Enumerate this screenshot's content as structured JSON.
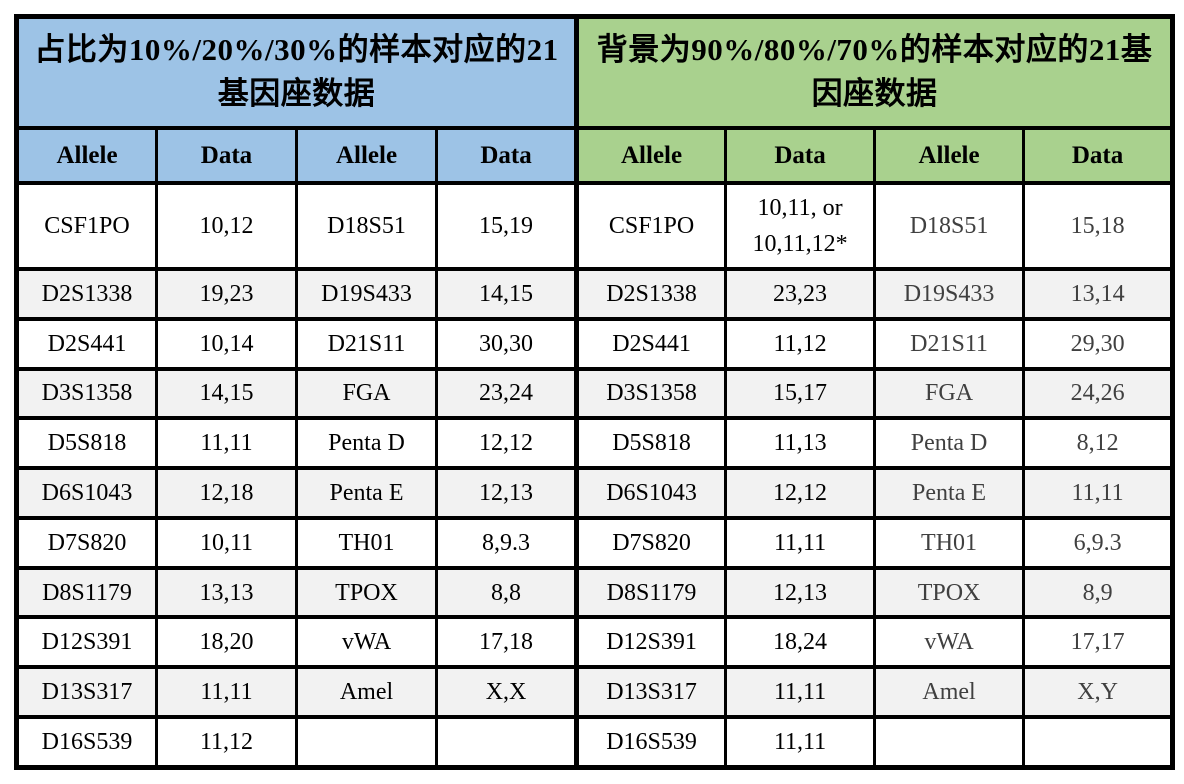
{
  "table": {
    "left": {
      "title": "占比为10%/20%/30%的样本对应的21基因座数据",
      "columns": [
        "Allele",
        "Data",
        "Allele",
        "Data"
      ]
    },
    "right": {
      "title": "背景为90%/80%/70%的样本对应的21基因座数据",
      "columns": [
        "Allele",
        "Data",
        "Allele",
        "Data"
      ]
    },
    "rows": [
      {
        "left": [
          "CSF1PO",
          "10,12",
          "D18S51",
          "15,19"
        ],
        "right": [
          "CSF1PO",
          "10,11, or\n10,11,12*",
          "D18S51",
          "15,18"
        ]
      },
      {
        "left": [
          "D2S1338",
          "19,23",
          "D19S433",
          "14,15"
        ],
        "right": [
          "D2S1338",
          "23,23",
          "D19S433",
          "13,14"
        ]
      },
      {
        "left": [
          "D2S441",
          "10,14",
          "D21S11",
          "30,30"
        ],
        "right": [
          "D2S441",
          "11,12",
          "D21S11",
          "29,30"
        ]
      },
      {
        "left": [
          "D3S1358",
          "14,15",
          "FGA",
          "23,24"
        ],
        "right": [
          "D3S1358",
          "15,17",
          "FGA",
          "24,26"
        ]
      },
      {
        "left": [
          "D5S818",
          "11,11",
          "Penta D",
          "12,12"
        ],
        "right": [
          "D5S818",
          "11,13",
          "Penta D",
          "8,12"
        ]
      },
      {
        "left": [
          "D6S1043",
          "12,18",
          "Penta E",
          "12,13"
        ],
        "right": [
          "D6S1043",
          "12,12",
          "Penta E",
          "11,11"
        ]
      },
      {
        "left": [
          "D7S820",
          "10,11",
          "TH01",
          "8,9.3"
        ],
        "right": [
          "D7S820",
          "11,11",
          "TH01",
          "6,9.3"
        ]
      },
      {
        "left": [
          "D8S1179",
          "13,13",
          "TPOX",
          "8,8"
        ],
        "right": [
          "D8S1179",
          "12,13",
          "TPOX",
          "8,9"
        ]
      },
      {
        "left": [
          "D12S391",
          "18,20",
          "vWA",
          "17,18"
        ],
        "right": [
          "D12S391",
          "18,24",
          "vWA",
          "17,17"
        ]
      },
      {
        "left": [
          "D13S317",
          "11,11",
          "Amel",
          "X,X"
        ],
        "right": [
          "D13S317",
          "11,11",
          "Amel",
          "X,Y"
        ]
      },
      {
        "left": [
          "D16S539",
          "11,12",
          "",
          ""
        ],
        "right": [
          "D16S539",
          "11,11",
          "",
          ""
        ]
      }
    ],
    "colors": {
      "left_header": "#9DC3E6",
      "right_header": "#A9D18E",
      "stripe": "#F2F2F2",
      "border": "#000000",
      "text": "#000000",
      "muted_text": "#404040",
      "background": "#FFFFFF"
    }
  }
}
